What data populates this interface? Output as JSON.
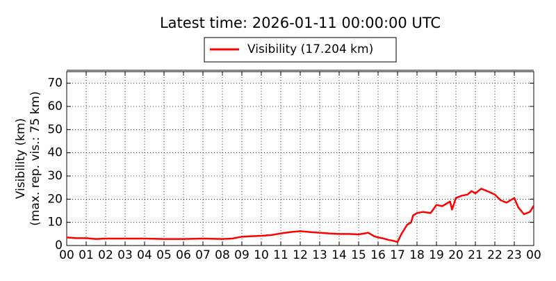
{
  "chart_data": {
    "type": "line",
    "title": "Latest time: 2026-01-11 00:00:00 UTC",
    "ylabel": [
      "Visibility (km)",
      "(max. rep. vis.: 75 km)"
    ],
    "xlim": [
      0,
      24
    ],
    "ylim": [
      0,
      75
    ],
    "xticks": [
      {
        "value": 0,
        "label": "00"
      },
      {
        "value": 1,
        "label": "01"
      },
      {
        "value": 2,
        "label": "02"
      },
      {
        "value": 3,
        "label": "03"
      },
      {
        "value": 4,
        "label": "04"
      },
      {
        "value": 5,
        "label": "05"
      },
      {
        "value": 6,
        "label": "06"
      },
      {
        "value": 7,
        "label": "07"
      },
      {
        "value": 8,
        "label": "08"
      },
      {
        "value": 9,
        "label": "09"
      },
      {
        "value": 10,
        "label": "10"
      },
      {
        "value": 11,
        "label": "11"
      },
      {
        "value": 12,
        "label": "12"
      },
      {
        "value": 13,
        "label": "13"
      },
      {
        "value": 14,
        "label": "14"
      },
      {
        "value": 15,
        "label": "15"
      },
      {
        "value": 16,
        "label": "16"
      },
      {
        "value": 17,
        "label": "17"
      },
      {
        "value": 18,
        "label": "18"
      },
      {
        "value": 19,
        "label": "19"
      },
      {
        "value": 20,
        "label": "20"
      },
      {
        "value": 21,
        "label": "21"
      },
      {
        "value": 22,
        "label": "22"
      },
      {
        "value": 23,
        "label": "23"
      },
      {
        "value": 24,
        "label": "00"
      }
    ],
    "yticks": [
      0,
      10,
      20,
      30,
      40,
      50,
      60,
      70
    ],
    "grid": true,
    "x": [
      0,
      0.5,
      1,
      1.5,
      2,
      3,
      4,
      5,
      6,
      7,
      8,
      8.5,
      9,
      9.5,
      10,
      10.5,
      11,
      11.5,
      12,
      12.5,
      13,
      13.5,
      14,
      14.5,
      15,
      15.3,
      15.5,
      15.8,
      16,
      16.3,
      16.5,
      16.8,
      17,
      17.2,
      17.5,
      17.7,
      17.8,
      18,
      18.3,
      18.7,
      19,
      19.3,
      19.5,
      19.7,
      19.8,
      20,
      20.3,
      20.6,
      20.8,
      21,
      21.3,
      21.6,
      22,
      22.3,
      22.6,
      23,
      23.2,
      23.5,
      23.8,
      24
    ],
    "series": [
      {
        "name": "Visibility (17.204 km)",
        "color": "#ff0000",
        "values": [
          3.5,
          3.2,
          3.2,
          2.8,
          3,
          3,
          3,
          2.8,
          2.8,
          3,
          2.8,
          3,
          3.8,
          4,
          4.2,
          4.5,
          5.2,
          5.8,
          6.2,
          5.8,
          5.5,
          5.2,
          5,
          5,
          4.8,
          5.2,
          5.5,
          4,
          3.5,
          3,
          2.5,
          2,
          1.5,
          5,
          9,
          10,
          13,
          14,
          14.5,
          14,
          17.5,
          17,
          18,
          19,
          15.5,
          20.5,
          21.5,
          22,
          23.5,
          22.5,
          24.5,
          23.5,
          22,
          19.5,
          18.5,
          20.5,
          16.5,
          13.5,
          14.5,
          17.2
        ]
      }
    ]
  }
}
